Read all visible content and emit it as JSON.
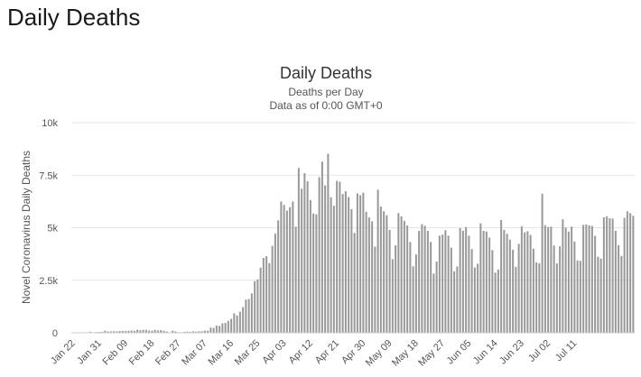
{
  "page": {
    "heading": "Daily Deaths"
  },
  "chart_data": {
    "type": "bar",
    "title": "Daily Deaths",
    "subtitle": "Deaths per Day",
    "subtitle2": "Data as of 0:00 GMT+0",
    "ylabel": "Novel Coronavirus Daily Deaths",
    "xlabel": "",
    "ylim": [
      0,
      10000
    ],
    "yticks": [
      0,
      2500,
      5000,
      7500,
      10000
    ],
    "ytick_labels": [
      "0",
      "2.5k",
      "5k",
      "7.5k",
      "10k"
    ],
    "xtick_labels": [
      "Jan 22",
      "Jan 31",
      "Feb 09",
      "Feb 18",
      "Feb 27",
      "Mar 07",
      "Mar 16",
      "Mar 25",
      "Apr 03",
      "Apr 12",
      "Apr 21",
      "Apr 30",
      "May 09",
      "May 18",
      "May 27",
      "Jun 05",
      "Jun 14",
      "Jun 23",
      "Jul 02",
      "Jul 11"
    ],
    "xtick_every": 9,
    "start_date": "Jan 22",
    "grid": true,
    "bar_color": "#999999",
    "values": [
      17,
      0,
      8,
      16,
      14,
      26,
      49,
      2,
      38,
      42,
      46,
      103,
      64,
      66,
      72,
      70,
      86,
      86,
      89,
      97,
      108,
      97,
      146,
      121,
      143,
      142,
      105,
      98,
      139,
      115,
      126,
      98,
      66,
      11,
      100,
      67,
      26,
      28,
      45,
      56,
      46,
      69,
      56,
      69,
      70,
      105,
      101,
      247,
      235,
      345,
      331,
      449,
      470,
      572,
      665,
      925,
      827,
      1000,
      1220,
      1582,
      1612,
      1874,
      2457,
      2542,
      3101,
      3565,
      3644,
      3319,
      4140,
      4725,
      5350,
      6248,
      6084,
      5820,
      5978,
      6246,
      5048,
      7843,
      6856,
      7600,
      7214,
      6316,
      5677,
      5638,
      7404,
      8145,
      7013,
      8520,
      6452,
      6046,
      7227,
      7187,
      6600,
      6733,
      6458,
      5888,
      4750,
      6633,
      6546,
      6667,
      5758,
      5490,
      5307,
      4100,
      6810,
      6005,
      5782,
      5597,
      4897,
      3503,
      4167,
      5700,
      5542,
      5323,
      5109,
      4321,
      3162,
      3726,
      4845,
      5168,
      5093,
      4853,
      4326,
      2817,
      3389,
      4619,
      4673,
      4886,
      4624,
      4052,
      2924,
      3157,
      4981,
      4858,
      5032,
      4622,
      3983,
      3109,
      3285,
      5212,
      4849,
      4818,
      4529,
      3932,
      2863,
      3010,
      5364,
      4897,
      4708,
      4437,
      3950,
      3140,
      4236,
      5068,
      4782,
      4832,
      4659,
      4005,
      3352,
      3310,
      6617,
      5119,
      5035,
      5050,
      4153,
      3305,
      4114,
      5398,
      5010,
      4814,
      5052,
      4345,
      3444,
      3422,
      5136,
      5157,
      5111,
      5084,
      4616,
      3619,
      3530,
      5493,
      5545,
      5451,
      5432,
      4851,
      4172,
      3659,
      5470,
      5781,
      5696,
      5568
    ]
  }
}
